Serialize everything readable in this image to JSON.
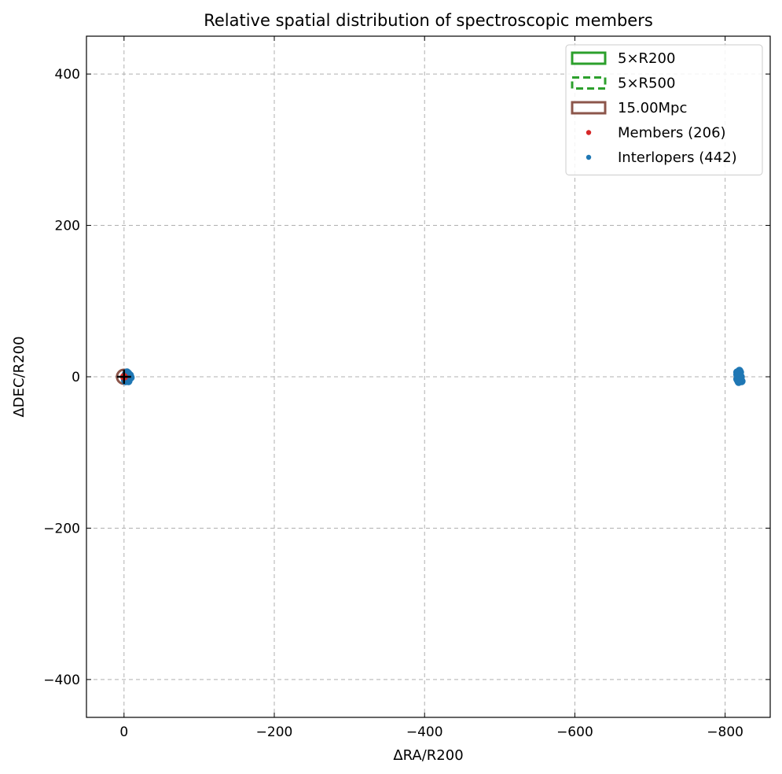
{
  "chart_data": {
    "type": "scatter",
    "title": "Relative spatial distribution of spectroscopic members",
    "xlabel": "ΔRA/R200",
    "ylabel": "ΔDEC/R200",
    "xlim": [
      50,
      -860
    ],
    "ylim": [
      -450,
      450
    ],
    "x_inverted": true,
    "xticks": [
      0,
      -200,
      -400,
      -600,
      -800
    ],
    "xtick_labels": [
      "0",
      "−200",
      "−400",
      "−600",
      "−800"
    ],
    "yticks": [
      400,
      200,
      0,
      -200,
      -400
    ],
    "ytick_labels": [
      "400",
      "200",
      "0",
      "−200",
      "−400"
    ],
    "grid": true,
    "legend_position": "top-right",
    "legend": [
      {
        "label": "5×R200",
        "kind": "rect-solid",
        "color": "#2ca02c"
      },
      {
        "label": "5×R500",
        "kind": "rect-dashed",
        "color": "#2ca02c"
      },
      {
        "label": "15.00Mpc",
        "kind": "rect-solid",
        "color": "#8c564b"
      },
      {
        "label": "Members (206)",
        "kind": "dot",
        "color": "#d62728"
      },
      {
        "label": "Interlopers (442)",
        "kind": "dot",
        "color": "#1f77b4"
      }
    ],
    "series": [
      {
        "name": "Interlopers (442)",
        "color": "#1f77b4",
        "points": [
          [
            -2,
            3
          ],
          [
            -4,
            -2
          ],
          [
            -6,
            4
          ],
          [
            -3,
            -5
          ],
          [
            -1,
            1
          ],
          [
            -5,
            0
          ],
          [
            -7,
            -3
          ],
          [
            -2,
            -6
          ],
          [
            -8,
            2
          ],
          [
            -4,
            6
          ],
          [
            -6,
            -6
          ],
          [
            -3,
            2
          ],
          [
            -9,
            -1
          ],
          [
            -1,
            -4
          ],
          [
            -5,
            5
          ],
          [
            -7,
            1
          ],
          [
            -816,
            3
          ],
          [
            -818,
            -2
          ],
          [
            -820,
            6
          ],
          [
            -817,
            -5
          ],
          [
            -821,
            0
          ],
          [
            -819,
            8
          ],
          [
            -816,
            -3
          ],
          [
            -822,
            -6
          ],
          [
            -818,
            4
          ],
          [
            -820,
            -1
          ],
          [
            -817,
            1
          ],
          [
            -821,
            -4
          ],
          [
            -819,
            2
          ],
          [
            -816,
            6
          ],
          [
            -818,
            -7
          ]
        ]
      },
      {
        "name": "Members (206)",
        "color": "#d62728",
        "points": [
          [
            0,
            0
          ]
        ]
      }
    ],
    "circles": [
      {
        "label": "15.00Mpc",
        "center": [
          0,
          0
        ],
        "radius": 1.8,
        "color": "#8c564b"
      }
    ],
    "center_marker": {
      "symbol": "+",
      "x": 0,
      "y": 0,
      "color": "#000000"
    }
  }
}
